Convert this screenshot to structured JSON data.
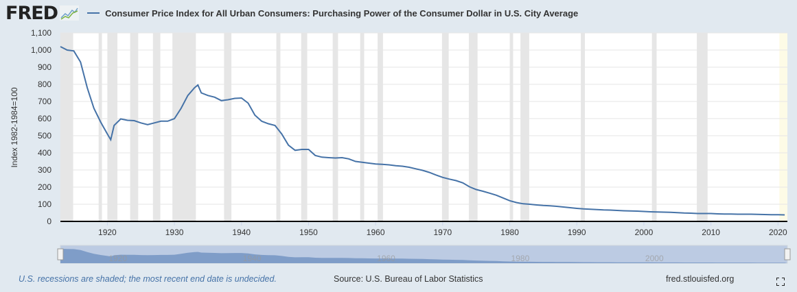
{
  "logo": "FRED",
  "title": "Consumer Price Index for All Urban Consumers: Purchasing Power of the Consumer Dollar in U.S. City Average",
  "footer": {
    "note": "U.S. recessions are shaded; the most recent end date is undecided.",
    "source": "Source: U.S. Bureau of Labor Statistics",
    "url": "fred.stlouisfed.org"
  },
  "colors": {
    "series": "#4572a7",
    "recession": "#e6e6e6",
    "undecided": "#fdfbe6",
    "background": "#e1e9f0"
  },
  "chart_data": {
    "type": "line",
    "title": "Consumer Price Index for All Urban Consumers: Purchasing Power of the Consumer Dollar in U.S. City Average",
    "ylabel": "Index 1982-1984=100",
    "xlabel": "",
    "ylim": [
      0,
      1100
    ],
    "xlim": [
      1913,
      2021.4
    ],
    "yticks": [
      "0",
      "100",
      "200",
      "300",
      "400",
      "500",
      "600",
      "700",
      "800",
      "900",
      "1,000",
      "1,100"
    ],
    "xticks": [
      "1920",
      "1930",
      "1940",
      "1950",
      "1960",
      "1970",
      "1980",
      "1990",
      "2000",
      "2010",
      "2020"
    ],
    "navigator_ticks": [
      "1920",
      "1940",
      "1960",
      "1980",
      "2000"
    ],
    "grid": true,
    "legend": "top-left",
    "recessions": [
      [
        1913.0,
        1914.9
      ],
      [
        1918.7,
        1919.2
      ],
      [
        1920.0,
        1921.5
      ],
      [
        1923.4,
        1924.6
      ],
      [
        1926.8,
        1927.9
      ],
      [
        1929.7,
        1933.2
      ],
      [
        1937.4,
        1938.5
      ],
      [
        1945.2,
        1945.8
      ],
      [
        1948.9,
        1949.8
      ],
      [
        1953.6,
        1954.4
      ],
      [
        1957.7,
        1958.3
      ],
      [
        1960.3,
        1961.1
      ],
      [
        1969.9,
        1970.9
      ],
      [
        1973.9,
        1975.2
      ],
      [
        1980.0,
        1980.5
      ],
      [
        1981.6,
        1982.9
      ],
      [
        1990.6,
        1991.2
      ],
      [
        2001.2,
        2001.9
      ],
      [
        2007.9,
        2009.5
      ]
    ],
    "undecided_recession": [
      2020.2,
      2021.4
    ],
    "x": [
      1913,
      1914,
      1915,
      1916,
      1917,
      1918,
      1919,
      1920,
      1920.5,
      1921,
      1922,
      1923,
      1924,
      1925,
      1926,
      1927,
      1928,
      1929,
      1930,
      1931,
      1932,
      1933,
      1933.5,
      1934,
      1935,
      1936,
      1937,
      1938,
      1939,
      1940,
      1941,
      1942,
      1943,
      1944,
      1945,
      1946,
      1947,
      1948,
      1949,
      1950,
      1951,
      1952,
      1953,
      1954,
      1955,
      1956,
      1957,
      1958,
      1959,
      1960,
      1961,
      1962,
      1963,
      1964,
      1965,
      1966,
      1967,
      1968,
      1969,
      1970,
      1971,
      1972,
      1973,
      1974,
      1975,
      1976,
      1977,
      1978,
      1979,
      1980,
      1981,
      1982,
      1983,
      1984,
      1985,
      1986,
      1987,
      1988,
      1989,
      1990,
      1991,
      1992,
      1993,
      1994,
      1995,
      1996,
      1997,
      1998,
      1999,
      2000,
      2001,
      2002,
      2003,
      2004,
      2005,
      2006,
      2007,
      2008,
      2009,
      2010,
      2011,
      2012,
      2013,
      2014,
      2015,
      2016,
      2017,
      2018,
      2019,
      2020,
      2021
    ],
    "values": [
      1020,
      1000,
      995,
      930,
      780,
      660,
      580,
      510,
      477,
      560,
      598,
      590,
      588,
      575,
      565,
      575,
      585,
      585,
      600,
      660,
      735,
      780,
      796,
      750,
      735,
      725,
      705,
      710,
      718,
      720,
      690,
      620,
      585,
      570,
      560,
      510,
      445,
      415,
      420,
      420,
      385,
      375,
      372,
      370,
      372,
      365,
      350,
      345,
      340,
      335,
      333,
      330,
      325,
      322,
      316,
      307,
      298,
      286,
      271,
      257,
      247,
      238,
      225,
      202,
      186,
      176,
      165,
      153,
      137,
      121,
      110,
      103,
      100,
      96,
      93,
      91,
      88,
      84,
      80,
      76,
      73,
      71,
      69,
      67,
      66,
      64,
      62,
      61,
      60,
      58,
      56,
      55,
      54,
      53,
      51,
      49,
      48,
      46,
      46,
      46,
      44,
      43,
      43,
      42,
      42,
      42,
      41,
      40,
      39,
      39,
      38
    ]
  }
}
